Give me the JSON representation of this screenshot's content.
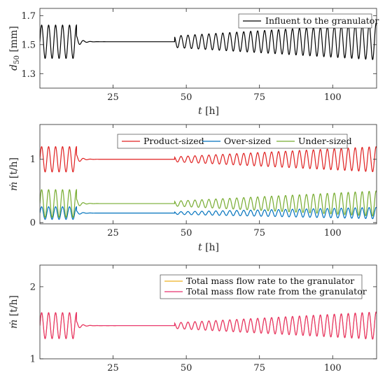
{
  "chart_data": [
    {
      "type": "line",
      "title": "",
      "xlabel": "t [h]",
      "ylabel": "d50 [mm]",
      "xlim": [
        0,
        115
      ],
      "ylim": [
        1.2,
        1.75
      ],
      "xticks": [
        25,
        50,
        75,
        100
      ],
      "yticks": [
        1.3,
        1.5,
        1.7
      ],
      "grid": false,
      "legend_position": "top-right",
      "series": [
        {
          "name": "Influent to the granulator",
          "color": "#000000",
          "mean": 1.52,
          "period_h": 2.38,
          "segments": [
            {
              "x": [
                0,
                12.5
              ],
              "amplitude": 0.115
            },
            {
              "x": [
                12.5,
                46
              ],
              "amplitude": 0.0,
              "decay_from": 0.04
            },
            {
              "x": [
                46,
                115
              ],
              "amplitude_start": 0.04,
              "amplitude_end": 0.125
            }
          ]
        }
      ]
    },
    {
      "type": "line",
      "title": "",
      "xlabel": "t [h]",
      "ylabel": "ṁ [t/h]",
      "xlim": [
        0,
        115
      ],
      "ylim": [
        -0.02,
        1.55
      ],
      "xticks": [
        25,
        50,
        75,
        100
      ],
      "yticks": [
        0,
        1
      ],
      "grid": false,
      "legend_position": "top",
      "series": [
        {
          "name": "Product-sized",
          "color": "#E02020",
          "mean": 1.0,
          "period_h": 2.38,
          "segments": [
            {
              "x": [
                0,
                12.5
              ],
              "amplitude": 0.2
            },
            {
              "x": [
                12.5,
                46
              ],
              "amplitude": 0.0,
              "decay_from": 0.07
            },
            {
              "x": [
                46,
                115
              ],
              "amplitude_start": 0.04,
              "amplitude_end": 0.2
            }
          ]
        },
        {
          "name": "Over-sized",
          "color": "#0072BD",
          "mean": 0.15,
          "period_h": 2.38,
          "segments": [
            {
              "x": [
                0,
                12.5
              ],
              "amplitude": 0.1
            },
            {
              "x": [
                12.5,
                46
              ],
              "amplitude": 0.0,
              "decay_from": 0.035
            },
            {
              "x": [
                46,
                115
              ],
              "amplitude_start": 0.02,
              "amplitude_end": 0.09
            }
          ]
        },
        {
          "name": "Under-sized",
          "color": "#77AC30",
          "mean": 0.3,
          "period_h": 2.38,
          "segments": [
            {
              "x": [
                0,
                12.5
              ],
              "amplitude": 0.22
            },
            {
              "x": [
                12.5,
                46
              ],
              "amplitude": 0.0,
              "decay_from": 0.07
            },
            {
              "x": [
                46,
                115
              ],
              "amplitude_start": 0.04,
              "amplitude_end": 0.2
            }
          ]
        }
      ]
    },
    {
      "type": "line",
      "title": "",
      "xlabel": "",
      "ylabel": "ṁ [t/h]",
      "xlim": [
        0,
        115
      ],
      "ylim": [
        1.0,
        2.3
      ],
      "xticks": [
        25,
        50,
        75,
        100
      ],
      "yticks": [
        1,
        2
      ],
      "grid": false,
      "legend_position": "top-right",
      "series": [
        {
          "name": "Total mass flow rate to the granulator",
          "color": "#EDB120",
          "mean": 1.46,
          "period_h": 2.38,
          "segments": [
            {
              "x": [
                0,
                12.5
              ],
              "amplitude": 0.18
            },
            {
              "x": [
                12.5,
                46
              ],
              "amplitude": 0.0,
              "decay_from": 0.06
            },
            {
              "x": [
                46,
                115
              ],
              "amplitude_start": 0.04,
              "amplitude_end": 0.19
            }
          ]
        },
        {
          "name": "Total mass flow rate from the granulator",
          "color": "#E8306E",
          "mean": 1.46,
          "period_h": 2.38,
          "segments": [
            {
              "x": [
                0,
                12.5
              ],
              "amplitude": 0.18
            },
            {
              "x": [
                12.5,
                46
              ],
              "amplitude": 0.0,
              "decay_from": 0.06
            },
            {
              "x": [
                46,
                115
              ],
              "amplitude_start": 0.04,
              "amplitude_end": 0.19
            }
          ]
        }
      ]
    }
  ]
}
